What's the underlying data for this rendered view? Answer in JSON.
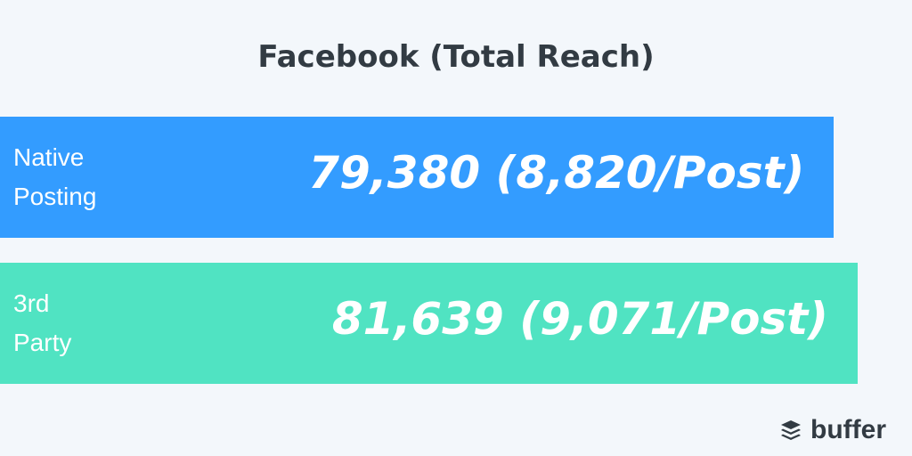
{
  "chart_data": {
    "type": "bar",
    "orientation": "horizontal",
    "title": "Facebook (Total Reach)",
    "categories": [
      "Native Posting",
      "3rd Party"
    ],
    "values": [
      79380,
      81639
    ],
    "value_labels": [
      "79,380 (8,820/Post)",
      "81,639 (9,071/Post)"
    ],
    "colors": [
      "#339cff",
      "#50e3c2"
    ]
  },
  "brand": "buffer"
}
